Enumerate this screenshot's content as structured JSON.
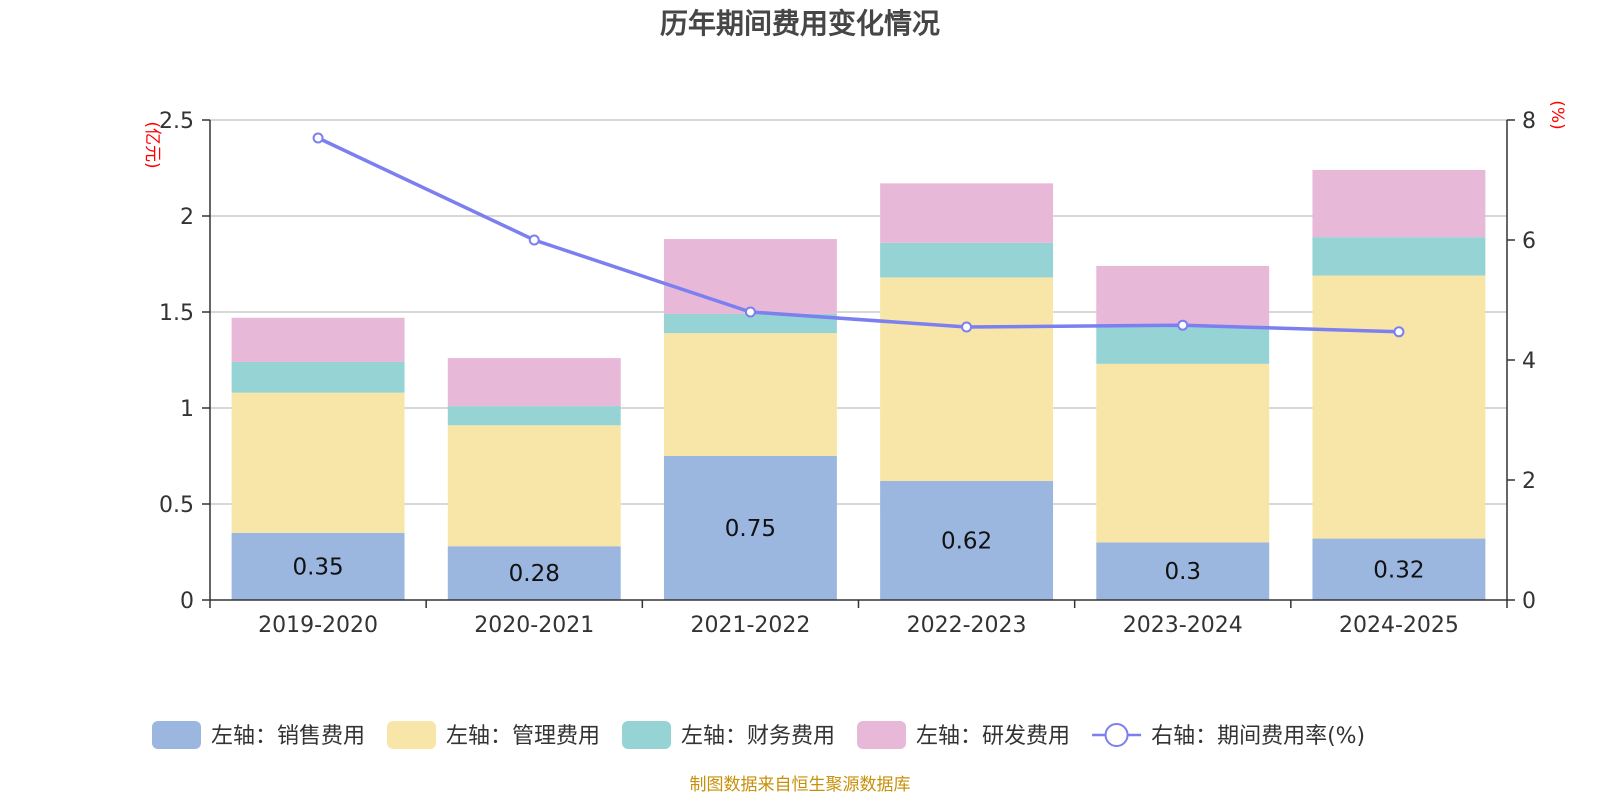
{
  "chart_data": {
    "type": "bar",
    "stacked": true,
    "title": "历年期间费用变化情况",
    "categories": [
      "2019-2020",
      "2020-2021",
      "2021-2022",
      "2022-2023",
      "2023-2024",
      "2024-2025"
    ],
    "left_axis": {
      "unit": "(亿元)",
      "ylim": [
        0,
        2.5
      ],
      "ticks": [
        "0",
        "0.5",
        "1",
        "1.5",
        "2",
        "2.5"
      ],
      "tick_values": [
        0,
        0.5,
        1,
        1.5,
        2,
        2.5
      ]
    },
    "right_axis": {
      "unit": "(%)",
      "ylim": [
        0,
        8
      ],
      "ticks": [
        "0",
        "2",
        "4",
        "6",
        "8"
      ],
      "tick_values": [
        0,
        2,
        4,
        6,
        8
      ]
    },
    "series": [
      {
        "name": "左轴：销售费用",
        "axis": "left",
        "type": "bar",
        "color": "#9bb7e0",
        "values": [
          0.35,
          0.28,
          0.75,
          0.62,
          0.3,
          0.32
        ],
        "labels": [
          "0.35",
          "0.28",
          "0.75",
          "0.62",
          "0.3",
          "0.32"
        ]
      },
      {
        "name": "左轴：管理费用",
        "axis": "left",
        "type": "bar",
        "color": "#f7e6a8",
        "values": [
          0.73,
          0.63,
          0.64,
          1.06,
          0.93,
          1.37
        ]
      },
      {
        "name": "左轴：财务费用",
        "axis": "left",
        "type": "bar",
        "color": "#96d3d4",
        "values": [
          0.16,
          0.1,
          0.1,
          0.18,
          0.2,
          0.2
        ]
      },
      {
        "name": "左轴：研发费用",
        "axis": "left",
        "type": "bar",
        "color": "#e8b8d8",
        "values": [
          0.23,
          0.25,
          0.39,
          0.31,
          0.31,
          0.35
        ]
      },
      {
        "name": "右轴：期间费用率(%)",
        "axis": "right",
        "type": "line",
        "color": "#7b7ff0",
        "values": [
          7.7,
          6.0,
          4.8,
          4.55,
          4.58,
          4.47
        ]
      }
    ],
    "grid": true,
    "legend_position": "bottom"
  },
  "source_text": "制图数据来自恒生聚源数据库"
}
